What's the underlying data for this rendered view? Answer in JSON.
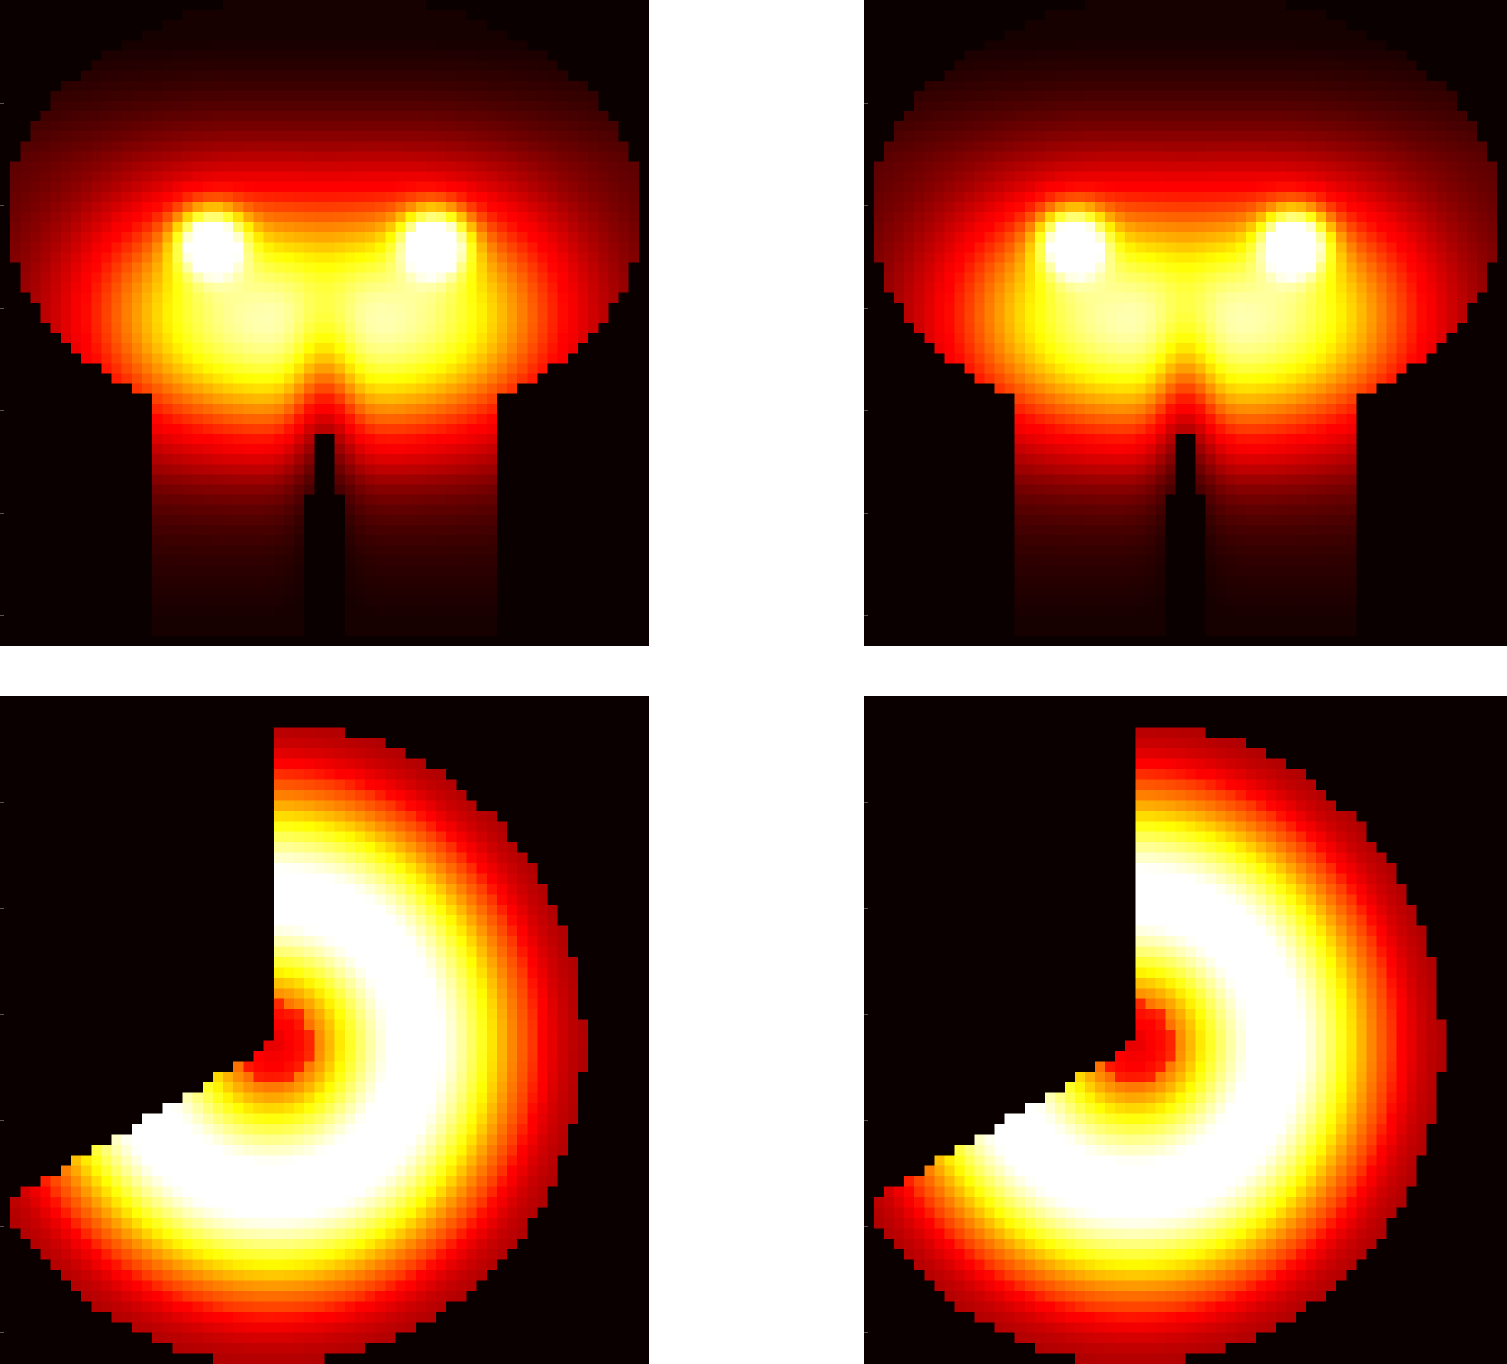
{
  "chart_data": [
    {
      "type": "heatmap",
      "title": "",
      "xlabel": "",
      "ylabel": "",
      "colormap": "hot",
      "colors": [
        "#0a0000",
        "#ff0000",
        "#ffff00",
        "#ffffff"
      ],
      "grid": 64,
      "field": "tooth-density"
    },
    {
      "type": "heatmap",
      "title": "",
      "xlabel": "",
      "ylabel": "",
      "colormap": "hot",
      "colors": [
        "#0a0000",
        "#ff0000",
        "#ffff00",
        "#ffffff"
      ],
      "grid": 64,
      "field": "tooth-density"
    },
    {
      "type": "heatmap",
      "title": "",
      "xlabel": "",
      "ylabel": "",
      "colormap": "hot",
      "colors": [
        "#0a0000",
        "#ff0000",
        "#ffff00",
        "#ffffff"
      ],
      "grid": 64,
      "field": "annular-sector",
      "sector_gap_degrees": [
        90,
        210
      ]
    },
    {
      "type": "heatmap",
      "title": "",
      "xlabel": "",
      "ylabel": "",
      "colormap": "hot",
      "colors": [
        "#0a0000",
        "#ff0000",
        "#ffff00",
        "#ffffff"
      ],
      "grid": 64,
      "field": "annular-sector",
      "sector_gap_degrees": [
        90,
        210
      ]
    }
  ]
}
